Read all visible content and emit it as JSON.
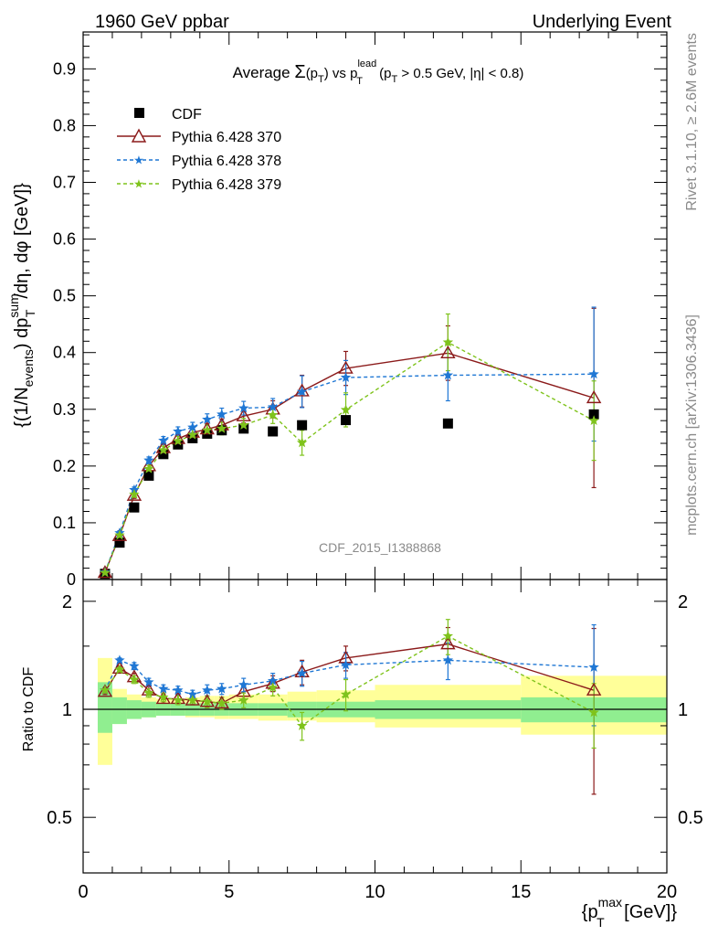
{
  "header": {
    "left": "1960 GeV ppbar",
    "right": "Underlying Event"
  },
  "side_labels": {
    "rivet": "Rivet 3.1.10, ≥ 2.6M events",
    "source": "mcplots.cern.ch [arXiv:1306.3436]"
  },
  "watermark": "CDF_2015_I1388868",
  "chart_data": [
    {
      "type": "scatter",
      "panel": "main",
      "title": "Average Σ(p_T) vs p_T^lead (p_T > 0.5 GeV, |η| < 0.8)",
      "title_parts": {
        "a": "Average ",
        "sigma": "Σ",
        "b": "(p",
        "sub_t1": "T",
        "c": ") vs p",
        "sup_lead": "lead",
        "sub_t2": "T",
        "d": " (p",
        "sub_t3": "T",
        "e": " > 0.5 GeV, |η| < 0.8)"
      },
      "ylabel": "{(1/N_events) dp_T^sum/dη, dφ [GeV]}",
      "ylabel_parts": {
        "a": "{(1/N",
        "sub_events": "events",
        "b": ") dp",
        "sup_sum": "sum",
        "sub_t": "T",
        "c": "/dη, dφ [GeV]}"
      },
      "xlim": [
        0,
        20
      ],
      "ylim": [
        0,
        0.965
      ],
      "yticks": [
        0,
        0.1,
        0.2,
        0.3,
        0.4,
        0.5,
        0.6,
        0.7,
        0.8,
        0.9
      ],
      "ytick_labels": [
        "0",
        "0.1",
        "0.2",
        "0.3",
        "0.4",
        "0.5",
        "0.6",
        "0.7",
        "0.8",
        "0.9"
      ],
      "legend_position": "top-left",
      "series": [
        {
          "name": "CDF",
          "color": "#000000",
          "marker": "square",
          "x": [
            0.75,
            1.25,
            1.75,
            2.25,
            2.75,
            3.25,
            3.75,
            4.25,
            4.75,
            5.5,
            6.5,
            7.5,
            9.0,
            12.5,
            17.5
          ],
          "y": [
            0.01,
            0.065,
            0.127,
            0.183,
            0.221,
            0.238,
            0.249,
            0.257,
            0.263,
            0.266,
            0.261,
            0.272,
            0.281,
            0.275,
            0.291
          ]
        },
        {
          "name": "Pythia 6.428 370",
          "color": "#8b1a1a",
          "marker": "open-triangle",
          "line": "solid",
          "x": [
            0.75,
            1.25,
            1.75,
            2.25,
            2.75,
            3.25,
            3.75,
            4.25,
            4.75,
            5.5,
            6.5,
            7.5,
            9.0,
            12.5,
            17.5
          ],
          "y": [
            0.012,
            0.077,
            0.148,
            0.2,
            0.232,
            0.248,
            0.259,
            0.265,
            0.272,
            0.288,
            0.3,
            0.332,
            0.372,
            0.399,
            0.32
          ],
          "err": [
            0.003,
            0.004,
            0.005,
            0.006,
            0.007,
            0.008,
            0.009,
            0.01,
            0.011,
            0.012,
            0.015,
            0.028,
            0.03,
            0.048,
            0.158
          ]
        },
        {
          "name": "Pythia 6.428 378",
          "color": "#1f77d4",
          "marker": "star",
          "line": "dashed",
          "x": [
            0.75,
            1.25,
            1.75,
            2.25,
            2.75,
            3.25,
            3.75,
            4.25,
            4.75,
            5.5,
            6.5,
            7.5,
            9.0,
            12.5,
            17.5
          ],
          "y": [
            0.013,
            0.082,
            0.158,
            0.21,
            0.245,
            0.261,
            0.268,
            0.282,
            0.291,
            0.302,
            0.304,
            0.331,
            0.356,
            0.36,
            0.362
          ],
          "err": [
            0.003,
            0.004,
            0.005,
            0.006,
            0.007,
            0.008,
            0.009,
            0.01,
            0.011,
            0.012,
            0.015,
            0.028,
            0.03,
            0.045,
            0.118
          ]
        },
        {
          "name": "Pythia 6.428 379",
          "color": "#7fc31c",
          "marker": "star",
          "line": "dashed",
          "x": [
            0.75,
            1.25,
            1.75,
            2.25,
            2.75,
            3.25,
            3.75,
            4.25,
            4.75,
            5.5,
            6.5,
            7.5,
            9.0,
            12.5,
            17.5
          ],
          "y": [
            0.012,
            0.078,
            0.15,
            0.195,
            0.228,
            0.244,
            0.255,
            0.263,
            0.266,
            0.272,
            0.29,
            0.241,
            0.299,
            0.418,
            0.28
          ],
          "err": [
            0.003,
            0.004,
            0.005,
            0.006,
            0.007,
            0.008,
            0.009,
            0.01,
            0.011,
            0.012,
            0.015,
            0.022,
            0.03,
            0.05,
            0.07
          ]
        }
      ]
    },
    {
      "type": "scatter",
      "panel": "ratio",
      "xlabel": "{p_T^max [GeV]}",
      "xlabel_parts": {
        "a": "{p",
        "sup_max": "max",
        "sub_t": "T",
        "b": " [GeV]}"
      },
      "ylabel": "Ratio to CDF",
      "scale": "log",
      "xlim": [
        0,
        20
      ],
      "ylim": [
        0.35,
        2.3
      ],
      "xticks": [
        0,
        5,
        10,
        15,
        20
      ],
      "xtick_labels": [
        "0",
        "5",
        "10",
        "15",
        "20"
      ],
      "yticks": [
        0.5,
        1,
        2
      ],
      "ytick_labels": [
        "0.5",
        "1",
        "2"
      ],
      "bands": {
        "edges": [
          0.5,
          1.0,
          1.5,
          2.0,
          2.5,
          3.0,
          3.5,
          4.0,
          4.5,
          5.0,
          6.0,
          7.0,
          8.0,
          10.0,
          15.0,
          20.0
        ],
        "stat_color": "#90ee90",
        "total_color": "#ffff99",
        "stat_lo": [
          0.86,
          0.91,
          0.94,
          0.95,
          0.96,
          0.96,
          0.96,
          0.96,
          0.96,
          0.96,
          0.96,
          0.95,
          0.95,
          0.94,
          0.92
        ],
        "stat_hi": [
          1.19,
          1.08,
          1.06,
          1.05,
          1.04,
          1.04,
          1.04,
          1.04,
          1.04,
          1.04,
          1.04,
          1.05,
          1.05,
          1.06,
          1.08
        ],
        "total_lo": [
          0.7,
          0.91,
          0.94,
          0.95,
          0.96,
          0.96,
          0.95,
          0.95,
          0.94,
          0.94,
          0.93,
          0.93,
          0.92,
          0.89,
          0.85
        ],
        "total_hi": [
          1.39,
          1.14,
          1.1,
          1.08,
          1.07,
          1.07,
          1.08,
          1.09,
          1.09,
          1.1,
          1.1,
          1.12,
          1.13,
          1.17,
          1.24
        ]
      },
      "series": [
        {
          "name": "Pythia 6.428 370",
          "color": "#8b1a1a",
          "marker": "open-triangle",
          "line": "solid",
          "x": [
            0.75,
            1.25,
            1.75,
            2.25,
            2.75,
            3.25,
            3.75,
            4.25,
            4.75,
            5.5,
            6.5,
            7.5,
            9.0,
            12.5,
            17.5
          ],
          "y": [
            1.12,
            1.3,
            1.23,
            1.13,
            1.07,
            1.07,
            1.06,
            1.05,
            1.04,
            1.12,
            1.18,
            1.27,
            1.39,
            1.52,
            1.13
          ],
          "err": [
            0.02,
            0.02,
            0.03,
            0.03,
            0.03,
            0.03,
            0.03,
            0.04,
            0.04,
            0.05,
            0.06,
            0.1,
            0.11,
            0.17,
            0.55
          ]
        },
        {
          "name": "Pythia 6.428 378",
          "color": "#1f77d4",
          "marker": "star",
          "line": "dashed",
          "x": [
            0.75,
            1.25,
            1.75,
            2.25,
            2.75,
            3.25,
            3.75,
            4.25,
            4.75,
            5.5,
            6.5,
            7.5,
            9.0,
            12.5,
            17.5
          ],
          "y": [
            1.13,
            1.37,
            1.32,
            1.19,
            1.14,
            1.13,
            1.1,
            1.13,
            1.14,
            1.17,
            1.2,
            1.26,
            1.33,
            1.37,
            1.31
          ],
          "err": [
            0.02,
            0.02,
            0.03,
            0.03,
            0.03,
            0.03,
            0.03,
            0.04,
            0.04,
            0.05,
            0.06,
            0.1,
            0.11,
            0.16,
            0.41
          ]
        },
        {
          "name": "Pythia 6.428 379",
          "color": "#7fc31c",
          "marker": "star",
          "line": "dashed",
          "x": [
            0.75,
            1.25,
            1.75,
            2.25,
            2.75,
            3.25,
            3.75,
            4.25,
            4.75,
            5.5,
            6.5,
            7.5,
            9.0,
            12.5,
            17.5
          ],
          "y": [
            1.13,
            1.29,
            1.21,
            1.11,
            1.08,
            1.06,
            1.06,
            1.05,
            1.04,
            1.06,
            1.15,
            0.9,
            1.1,
            1.6,
            0.98
          ],
          "err": [
            0.02,
            0.02,
            0.03,
            0.03,
            0.03,
            0.03,
            0.03,
            0.04,
            0.04,
            0.05,
            0.06,
            0.08,
            0.11,
            0.18,
            0.2
          ]
        }
      ]
    }
  ]
}
